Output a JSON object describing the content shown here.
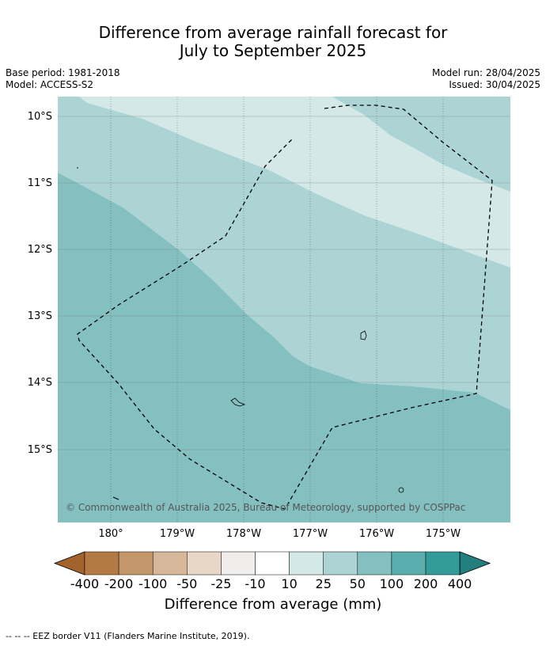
{
  "title_line1": "Difference from average rainfall forecast for",
  "title_line2": "July to September 2025",
  "meta_left": [
    "Base period: 1981-2018",
    "Model: ACCESS-S2"
  ],
  "meta_right": [
    "Model run: 28/04/2025",
    "Issued: 30/04/2025"
  ],
  "map": {
    "lat_labels": [
      "10°S",
      "11°S",
      "12°S",
      "13°S",
      "14°S",
      "15°S"
    ],
    "lon_labels": [
      "180°",
      "179°W",
      "178°W",
      "177°W",
      "176°W",
      "175°W"
    ],
    "copyright": "© Commonwealth of Australia 2025, Bureau of Meteorology, supported by COSPPac"
  },
  "colorbar": {
    "ticks": [
      "-400",
      "-200",
      "-100",
      "-50",
      "-25",
      "-10",
      "10",
      "25",
      "50",
      "100",
      "200",
      "400"
    ],
    "colors": [
      "#a2622b",
      "#b37a44",
      "#c4976a",
      "#d7b799",
      "#e8d6c6",
      "#efeeec",
      "#ffffff",
      "#d5e8e8",
      "#acd4d4",
      "#85c0c0",
      "#5aaeae",
      "#339c9a",
      "#237f7d"
    ],
    "label": "Difference from average (mm)"
  },
  "footnote": "--  --  -- EEZ border V11 (Flanders Marine Institute, 2019)."
}
